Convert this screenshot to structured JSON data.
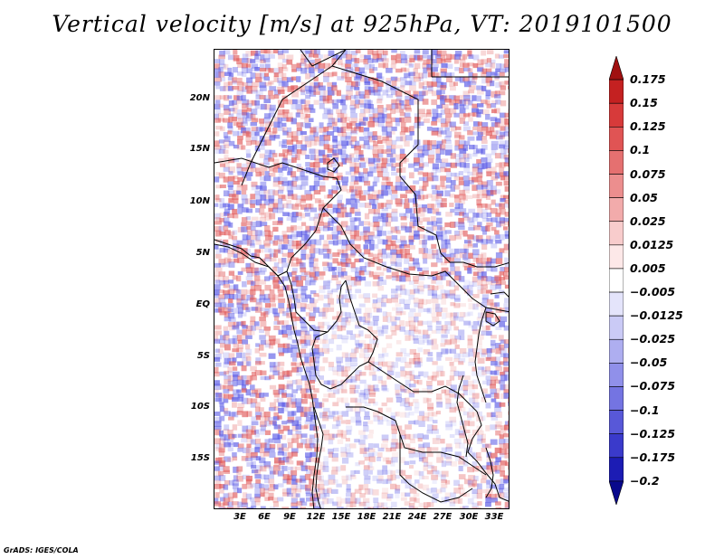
{
  "title": "Vertical velocity [m/s] at 925hPa, VT: 2019101500",
  "footer": "GrADS: IGES/COLA",
  "map": {
    "region": "Central Africa",
    "lat_labels": [
      "20N",
      "15N",
      "10N",
      "5N",
      "EQ",
      "5S",
      "10S",
      "15S"
    ],
    "lon_labels": [
      "3E",
      "6E",
      "9E",
      "12E",
      "15E",
      "18E",
      "21E",
      "24E",
      "27E",
      "30E",
      "33E"
    ]
  },
  "colorbar": {
    "labels": [
      "0.175",
      "0.15",
      "0.125",
      "0.1",
      "0.075",
      "0.05",
      "0.025",
      "0.0125",
      "0.005",
      "-0.005",
      "-0.0125",
      "-0.025",
      "-0.05",
      "-0.075",
      "-0.1",
      "-0.125",
      "-0.175",
      "-0.2"
    ],
    "colors": [
      "#a01010",
      "#c42121",
      "#d73a3a",
      "#e05454",
      "#e57070",
      "#ec8e8e",
      "#f2abab",
      "#f8cccc",
      "#fde8e8",
      "#ffffff",
      "#e4e4fb",
      "#cacaf6",
      "#aeaef0",
      "#9090ea",
      "#7474e2",
      "#5858d8",
      "#3a3acb",
      "#1c1cb4",
      "#08088c"
    ]
  },
  "colors": {
    "positive": "#e15a5a",
    "negative": "#5a5ae6",
    "coastline": "#000000"
  }
}
